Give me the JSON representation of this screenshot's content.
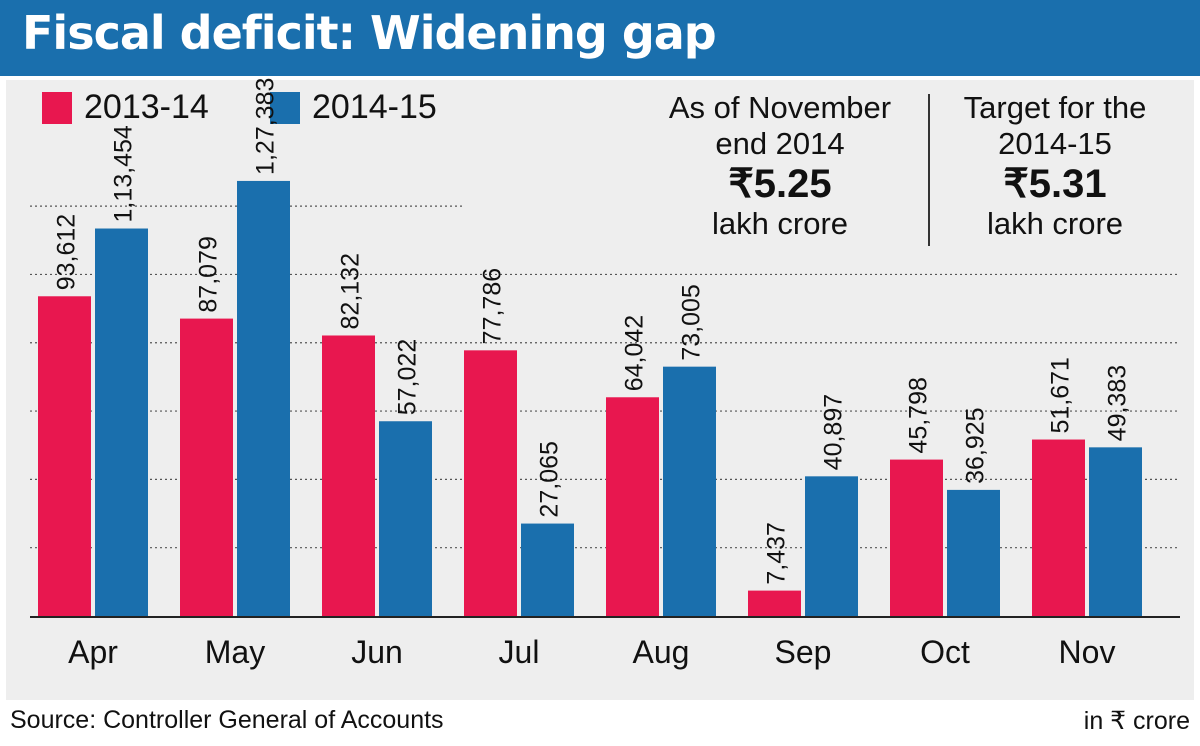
{
  "header": {
    "title": "Fiscal deficit: Widening gap"
  },
  "info": {
    "left": {
      "line1": "As of November",
      "line2": "end 2014",
      "value": "₹5.25",
      "unit": "lakh crore"
    },
    "right": {
      "line1": "Target for the",
      "line2": "2014-15",
      "value": "₹5.31",
      "unit": "lakh crore"
    }
  },
  "footer": {
    "source": "Source: Controller General of Accounts",
    "unit": "in ₹ crore"
  },
  "colors": {
    "series_2013_14": "#e8174f",
    "series_2014_15": "#1a6fad",
    "header": "#1a6fad",
    "panel": "#eeeeee"
  },
  "chart_data": {
    "type": "bar",
    "title": "Fiscal deficit: Widening gap",
    "xlabel": "",
    "ylabel": "",
    "ylim": [
      0,
      130000
    ],
    "grid": "dotted horizontal",
    "legend": "top-left",
    "categories": [
      "Apr",
      "May",
      "Jun",
      "Jul",
      "Aug",
      "Sep",
      "Oct",
      "Nov"
    ],
    "series": [
      {
        "name": "2013-14",
        "values": [
          93612,
          87079,
          82132,
          77786,
          64042,
          7437,
          45798,
          51671
        ],
        "labels": [
          "93,612",
          "87,079",
          "82,132",
          "77,786",
          "64,042",
          "7,437",
          "45,798",
          "51,671"
        ]
      },
      {
        "name": "2014-15",
        "values": [
          113454,
          127383,
          57022,
          27065,
          73005,
          40897,
          36925,
          49383
        ],
        "labels": [
          "1,13,454",
          "1,27,383",
          "57,022",
          "27,065",
          "73,005",
          "40,897",
          "36,925",
          "49,383"
        ]
      }
    ]
  }
}
